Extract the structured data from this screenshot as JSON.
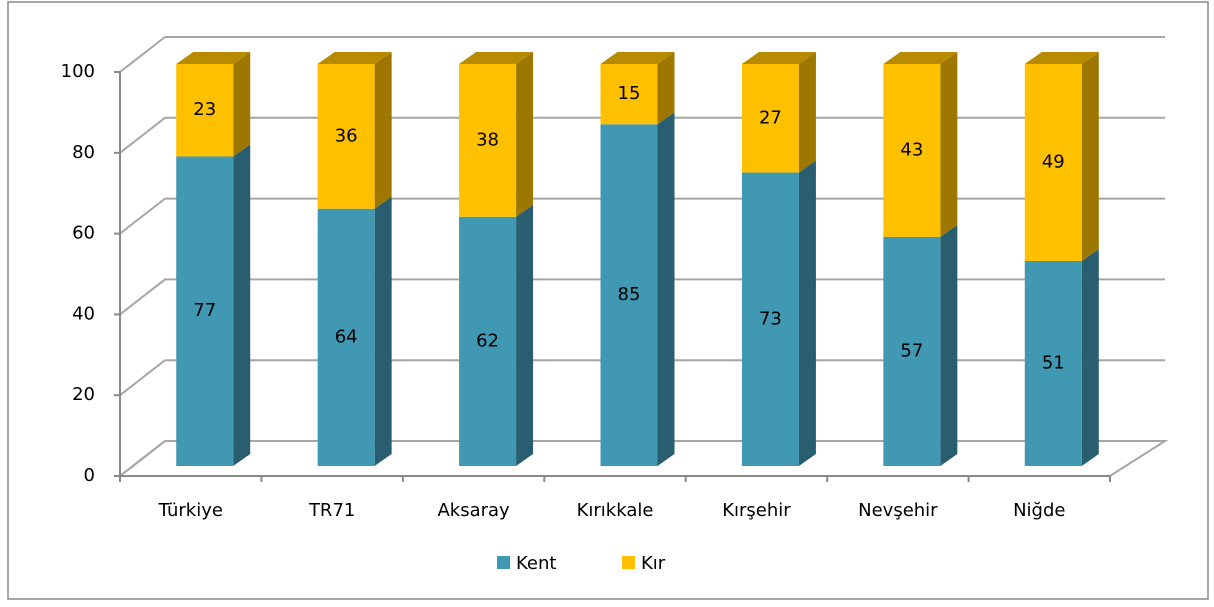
{
  "chart_data": {
    "type": "bar3d_stacked",
    "categories": [
      "Türkiye",
      "TR71",
      "Aksaray",
      "Kırıkkale",
      "Kırşehir",
      "Nevşehir",
      "Niğde"
    ],
    "series": [
      {
        "name": "Kent",
        "color": "#4198b3",
        "values": [
          77,
          64,
          62,
          85,
          73,
          57,
          51
        ]
      },
      {
        "name": "Kır",
        "color": "#ffc000",
        "values": [
          23,
          36,
          38,
          15,
          27,
          43,
          49
        ]
      }
    ],
    "ylim": [
      0,
      100
    ],
    "yticks": [
      0,
      20,
      40,
      60,
      80,
      100
    ],
    "grid": true,
    "legend": "bottom"
  }
}
